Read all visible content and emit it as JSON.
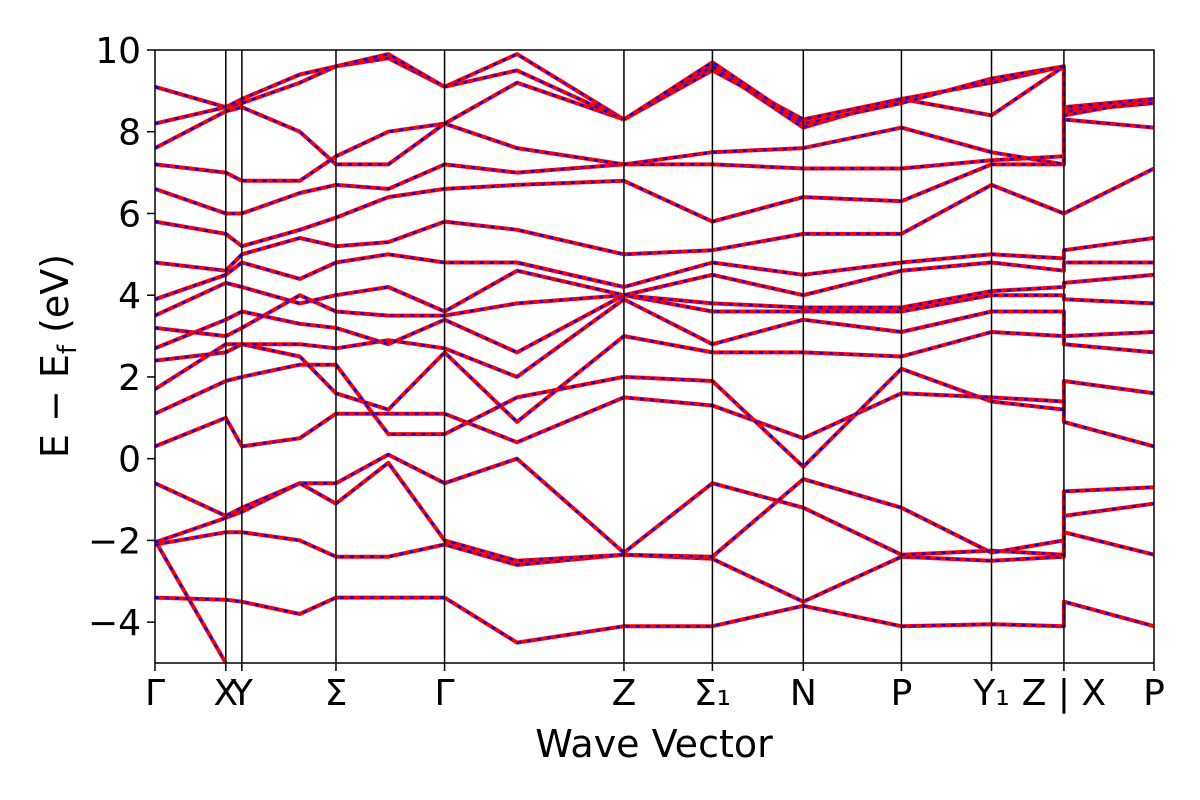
{
  "chart_data": {
    "type": "line",
    "title": "",
    "xlabel": "Wave Vector",
    "ylabel": "E − E_f (eV)",
    "ylabel_main": "E − E",
    "ylabel_sub": "f",
    "ylabel_unit": "(eV)",
    "ylim": [
      -5,
      10
    ],
    "yticks": [
      -4,
      -2,
      0,
      2,
      4,
      6,
      8,
      10
    ],
    "ytick_labels": [
      "−4",
      "−2",
      "0",
      "2",
      "4",
      "6",
      "8",
      "10"
    ],
    "x_range": [
      0,
      11.2
    ],
    "high_symmetry_points": [
      {
        "label": "Γ",
        "x": 0
      },
      {
        "label": "X",
        "x": 0.88
      },
      {
        "label": "Y",
        "x": 1.08
      },
      {
        "label": "Σ",
        "x": 2.25
      },
      {
        "label": "Γ",
        "x": 3.6
      },
      {
        "label": "Z",
        "x": 5.83
      },
      {
        "label": "Σ₁",
        "x": 6.93
      },
      {
        "label": "N",
        "x": 8.06
      },
      {
        "label": "P",
        "x": 9.28
      },
      {
        "label": "Y₁",
        "x": 10.4
      },
      {
        "label": "Z | X",
        "x": 11.3
      },
      {
        "label": "P",
        "x": 12.42
      }
    ],
    "xmax": 12.42,
    "grid": false,
    "legend": "none",
    "colors": {
      "series_a": "#ff0000",
      "series_b": "#0000ff"
    },
    "series": [
      {
        "x": [
          0,
          0.88,
          1.08,
          2.25,
          3.6,
          5.83,
          6.93,
          8.06,
          9.28,
          10.4,
          11.3,
          11.3,
          12.42
        ],
        "y": [
          -2.0,
          -5.0,
          null,
          null,
          null,
          null,
          null,
          null,
          null,
          null,
          null,
          null,
          null
        ]
      },
      {
        "x": [
          0,
          0.88,
          1.08,
          1.8,
          2.25,
          2.9,
          3.6,
          4.5,
          5.83,
          6.93,
          8.06,
          9.28,
          10.4,
          11.3,
          11.3,
          12.42
        ],
        "y": [
          -3.4,
          -3.45,
          -3.5,
          -3.8,
          -3.4,
          -3.4,
          -3.4,
          -4.5,
          -4.1,
          -4.1,
          -3.6,
          -4.1,
          -4.05,
          -4.1,
          -3.5,
          -4.1
        ]
      },
      {
        "x": [
          0,
          0.88,
          1.08,
          1.8,
          2.25,
          2.9,
          3.6,
          4.5,
          5.83,
          6.93,
          8.06,
          9.28,
          10.4,
          11.3,
          11.3,
          12.42
        ],
        "y": [
          -2.1,
          -1.8,
          -1.8,
          -2.0,
          -2.4,
          -2.4,
          -2.1,
          -2.6,
          -2.35,
          -2.45,
          -3.5,
          -2.4,
          -2.5,
          -2.4,
          -1.8,
          -2.35
        ]
      },
      {
        "x": [
          0,
          0.88,
          1.08,
          1.8,
          2.25,
          2.9,
          3.6,
          4.5,
          5.83,
          6.93,
          8.06,
          9.28,
          10.4,
          11.3,
          11.3,
          12.42
        ],
        "y": [
          -2.05,
          -1.45,
          -1.3,
          -0.6,
          -0.6,
          0.1,
          -0.6,
          0.0,
          -2.3,
          -0.6,
          -1.2,
          -2.35,
          -2.25,
          -2.35,
          -1.4,
          -1.1
        ]
      },
      {
        "x": [
          0,
          0.88,
          1.08,
          1.8,
          2.25,
          2.9,
          3.6,
          4.5,
          5.83,
          6.93,
          8.06,
          9.28,
          10.4,
          11.3,
          11.3,
          12.42
        ],
        "y": [
          -0.6,
          -1.4,
          -1.2,
          -0.6,
          -1.1,
          -0.1,
          -2.0,
          -2.5,
          -2.35,
          -2.4,
          -0.5,
          -1.2,
          -2.3,
          -2.0,
          -0.8,
          -0.7
        ]
      },
      {
        "x": [
          0,
          0.88,
          1.08,
          1.8,
          2.25,
          2.9,
          3.6,
          4.5,
          5.83,
          6.93,
          8.06,
          9.28,
          10.4,
          11.3,
          11.3,
          12.42
        ],
        "y": [
          0.3,
          1.0,
          0.3,
          0.5,
          1.1,
          1.1,
          1.1,
          0.4,
          1.5,
          1.3,
          0.5,
          1.6,
          1.5,
          1.4,
          0.9,
          0.3
        ]
      },
      {
        "x": [
          0,
          0.88,
          1.08,
          1.8,
          2.25,
          2.9,
          3.6,
          4.5,
          5.83,
          6.93,
          8.06,
          9.28,
          10.4,
          11.3,
          11.3,
          12.42
        ],
        "y": [
          1.1,
          1.9,
          2.0,
          2.3,
          2.3,
          0.6,
          0.6,
          1.5,
          2.0,
          1.9,
          -0.2,
          2.2,
          1.4,
          1.2,
          1.9,
          1.6
        ]
      },
      {
        "x": [
          0,
          0.88,
          1.08,
          1.8,
          2.25,
          2.9,
          3.6,
          4.5,
          5.83,
          6.93,
          8.06,
          9.28,
          10.4,
          11.3,
          11.3,
          12.42
        ],
        "y": [
          1.7,
          2.8,
          2.8,
          2.5,
          1.6,
          1.2,
          2.6,
          0.9,
          3.0,
          2.6,
          2.6,
          2.5,
          3.1,
          3.0,
          2.8,
          2.6
        ]
      },
      {
        "x": [
          0,
          0.88,
          1.08,
          1.8,
          2.25,
          2.9,
          3.6,
          4.5,
          5.83,
          6.93,
          8.06,
          9.28,
          10.4,
          11.3,
          11.3,
          12.42
        ],
        "y": [
          2.4,
          2.6,
          2.8,
          2.8,
          2.7,
          2.9,
          2.7,
          2.0,
          3.9,
          2.8,
          3.4,
          3.1,
          3.6,
          3.6,
          3.0,
          3.1
        ]
      },
      {
        "x": [
          0,
          0.88,
          1.08,
          1.8,
          2.25,
          2.9,
          3.6,
          4.5,
          5.83,
          6.93,
          8.06,
          9.28,
          10.4,
          11.3,
          11.3,
          12.42
        ],
        "y": [
          2.7,
          3.4,
          3.6,
          3.3,
          3.2,
          2.8,
          3.4,
          2.6,
          4.0,
          3.6,
          3.6,
          3.6,
          4.0,
          4.0,
          3.9,
          3.8
        ]
      },
      {
        "x": [
          0,
          0.88,
          1.08,
          1.8,
          2.25,
          2.9,
          3.6,
          4.5,
          5.83,
          6.93,
          8.06,
          9.28,
          10.4,
          11.3,
          11.3,
          12.42
        ],
        "y": [
          3.2,
          3.0,
          3.2,
          4.0,
          3.6,
          3.5,
          3.5,
          3.8,
          4.0,
          3.8,
          3.7,
          3.7,
          4.1,
          4.2,
          4.3,
          4.5
        ]
      },
      {
        "x": [
          0,
          0.88,
          1.08,
          1.8,
          2.25,
          2.9,
          3.6,
          4.5,
          5.83,
          6.93,
          8.06,
          9.28,
          10.4,
          11.3,
          11.3,
          12.42
        ],
        "y": [
          3.5,
          4.3,
          4.2,
          3.8,
          4.0,
          4.2,
          3.6,
          4.6,
          4.0,
          4.5,
          4.0,
          4.6,
          4.8,
          4.6,
          4.8,
          4.8
        ]
      },
      {
        "x": [
          0,
          0.88,
          1.08,
          1.8,
          2.25,
          2.9,
          3.6,
          4.5,
          5.83,
          6.93,
          8.06,
          9.28,
          10.4,
          11.3,
          11.3,
          12.42
        ],
        "y": [
          3.9,
          4.5,
          4.8,
          4.4,
          4.8,
          5.0,
          4.8,
          4.8,
          4.2,
          4.8,
          4.5,
          4.8,
          5.0,
          4.9,
          5.1,
          5.4
        ]
      },
      {
        "x": [
          0,
          0.88,
          1.08,
          1.8,
          2.25,
          2.9,
          3.6,
          4.5,
          5.83,
          6.93,
          8.06,
          9.28,
          10.4,
          11.3,
          11.3,
          12.42
        ],
        "y": [
          4.8,
          4.6,
          5.0,
          5.4,
          5.2,
          5.3,
          5.8,
          5.6,
          5.0,
          5.1,
          5.5,
          5.5,
          6.7,
          6.0,
          6.0,
          7.1
        ]
      },
      {
        "x": [
          0,
          0.88,
          1.08,
          1.8,
          2.25,
          2.9,
          3.6,
          4.5,
          5.83,
          6.93,
          8.06,
          9.28,
          10.4,
          11.3,
          11.3,
          12.42
        ],
        "y": [
          5.8,
          5.5,
          5.2,
          5.6,
          5.9,
          6.4,
          6.6,
          6.7,
          6.8,
          5.8,
          6.4,
          6.3,
          7.2,
          7.2,
          8.3,
          8.1
        ]
      },
      {
        "x": [
          0,
          0.88,
          1.08,
          1.8,
          2.25,
          2.9,
          3.6,
          4.5,
          5.83,
          6.93,
          8.06,
          9.28,
          10.4,
          11.3,
          11.3,
          12.42
        ],
        "y": [
          6.6,
          6.0,
          6.0,
          6.5,
          6.7,
          6.6,
          7.2,
          7.0,
          7.2,
          7.2,
          7.1,
          7.1,
          7.3,
          7.4,
          8.6,
          8.8
        ]
      },
      {
        "x": [
          0,
          0.88,
          1.08,
          1.8,
          2.25,
          2.9,
          3.6,
          4.5,
          5.83,
          6.93,
          8.06,
          9.28,
          10.4,
          11.3,
          11.3,
          12.42
        ],
        "y": [
          7.2,
          7.0,
          6.8,
          6.8,
          7.4,
          8.0,
          8.2,
          7.6,
          7.2,
          7.5,
          7.6,
          8.1,
          7.5,
          7.2,
          8.5,
          8.8
        ]
      },
      {
        "x": [
          0,
          0.88,
          1.08,
          1.8,
          2.25,
          2.9,
          3.6,
          4.5,
          5.83,
          6.93,
          8.06,
          9.28,
          10.4,
          11.3,
          11.3,
          12.42
        ],
        "y": [
          7.6,
          8.5,
          8.6,
          8.0,
          7.2,
          7.2,
          8.2,
          9.2,
          8.3,
          9.6,
          8.1,
          8.8,
          8.4,
          9.6,
          8.5,
          8.7
        ]
      },
      {
        "x": [
          0,
          0.88,
          1.08,
          1.8,
          2.25,
          2.9,
          3.6,
          4.5,
          5.83,
          6.93,
          8.06,
          9.28,
          10.4,
          11.3,
          11.3,
          12.42
        ],
        "y": [
          8.2,
          8.6,
          8.7,
          9.2,
          9.6,
          9.8,
          9.1,
          9.9,
          8.3,
          9.5,
          8.3,
          8.8,
          9.2,
          9.6,
          8.4,
          8.8
        ]
      },
      {
        "x": [
          0,
          0.88,
          1.08,
          1.8,
          2.25,
          2.9,
          3.6,
          4.5,
          5.83,
          6.93,
          8.06,
          9.28,
          10.4,
          11.3,
          11.3,
          12.42
        ],
        "y": [
          9.1,
          8.6,
          8.8,
          9.4,
          9.6,
          9.9,
          9.1,
          9.5,
          8.3,
          9.7,
          8.2,
          8.7,
          9.3,
          9.6,
          8.6,
          8.8
        ]
      }
    ]
  }
}
